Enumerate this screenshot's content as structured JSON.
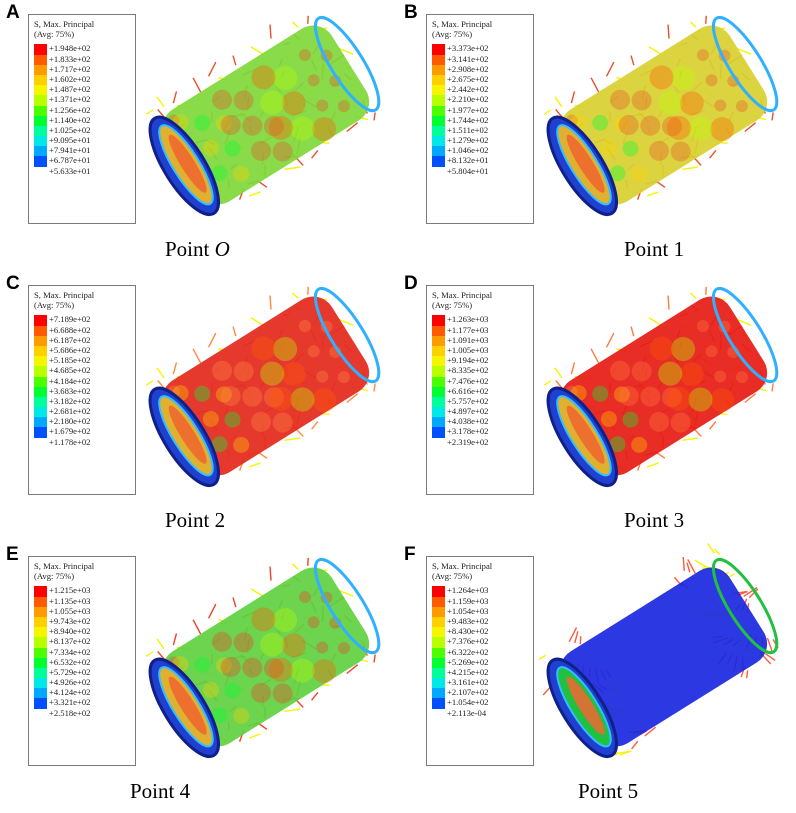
{
  "legend_common": {
    "title": "S, Max. Principal",
    "subtitle": "(Avg: 75%)"
  },
  "scale_colors": [
    "#ff0000",
    "#ff5a00",
    "#ff9a00",
    "#ffd000",
    "#f5f500",
    "#b8ff00",
    "#4cff00",
    "#00ff30",
    "#00ff9a",
    "#00e8e8",
    "#00a8ff",
    "#0050ff",
    "#0000ff"
  ],
  "panels": [
    {
      "letter": "A",
      "caption": "Point ",
      "caption_italic": "O",
      "values": [
        "+1.948e+02",
        "+1.833e+02",
        "+1.717e+02",
        "+1.602e+02",
        "+1.487e+02",
        "+1.371e+02",
        "+1.256e+02",
        "+1.140e+02",
        "+1.025e+02",
        "+9.095e+01",
        "+7.941e+01",
        "+6.787e+01",
        "+5.633e+01"
      ],
      "body_color": "#7fd83a",
      "tint": "#e8502a"
    },
    {
      "letter": "B",
      "caption": "Point 1",
      "caption_italic": "",
      "values": [
        "+3.373e+02",
        "+3.141e+02",
        "+2.908e+02",
        "+2.675e+02",
        "+2.442e+02",
        "+2.210e+02",
        "+1.977e+02",
        "+1.744e+02",
        "+1.511e+02",
        "+1.279e+02",
        "+1.046e+02",
        "+8.132e+01",
        "+5.804e+01"
      ],
      "body_color": "#d8d030",
      "tint": "#e8502a"
    },
    {
      "letter": "C",
      "caption": "Point 2",
      "caption_italic": "",
      "values": [
        "+7.189e+02",
        "+6.688e+02",
        "+6.187e+02",
        "+5.686e+02",
        "+5.185e+02",
        "+4.685e+02",
        "+4.184e+02",
        "+3.683e+02",
        "+3.182e+02",
        "+2.681e+02",
        "+2.180e+02",
        "+1.679e+02",
        "+1.178e+02"
      ],
      "body_color": "#e4281c",
      "tint": "#ff8a40"
    },
    {
      "letter": "D",
      "caption": "Point 3",
      "caption_italic": "",
      "values": [
        "+1.263e+03",
        "+1.177e+03",
        "+1.091e+03",
        "+1.005e+03",
        "+9.194e+02",
        "+8.335e+02",
        "+7.476e+02",
        "+6.616e+02",
        "+5.757e+02",
        "+4.897e+02",
        "+4.038e+02",
        "+3.178e+02",
        "+2.319e+02"
      ],
      "body_color": "#e61a14",
      "tint": "#ff7a40"
    },
    {
      "letter": "E",
      "caption": "Point 4",
      "caption_italic": "",
      "values": [
        "+1.215e+03",
        "+1.135e+03",
        "+1.055e+03",
        "+9.743e+02",
        "+8.940e+02",
        "+8.137e+02",
        "+7.334e+02",
        "+6.532e+02",
        "+5.729e+02",
        "+4.926e+02",
        "+4.124e+02",
        "+3.321e+02",
        "+2.518e+02"
      ],
      "body_color": "#60d040",
      "tint": "#f04028"
    },
    {
      "letter": "F",
      "caption": "Point 5",
      "caption_italic": "",
      "values": [
        "+1.264e+03",
        "+1.159e+03",
        "+1.054e+03",
        "+9.483e+02",
        "+8.430e+02",
        "+7.376e+02",
        "+6.322e+02",
        "+5.269e+02",
        "+4.215e+02",
        "+3.161e+02",
        "+2.107e+02",
        "+1.054e+02",
        "+2.113e-04"
      ],
      "body_color": "#1a28e0",
      "tint": "#ff5a40"
    }
  ]
}
